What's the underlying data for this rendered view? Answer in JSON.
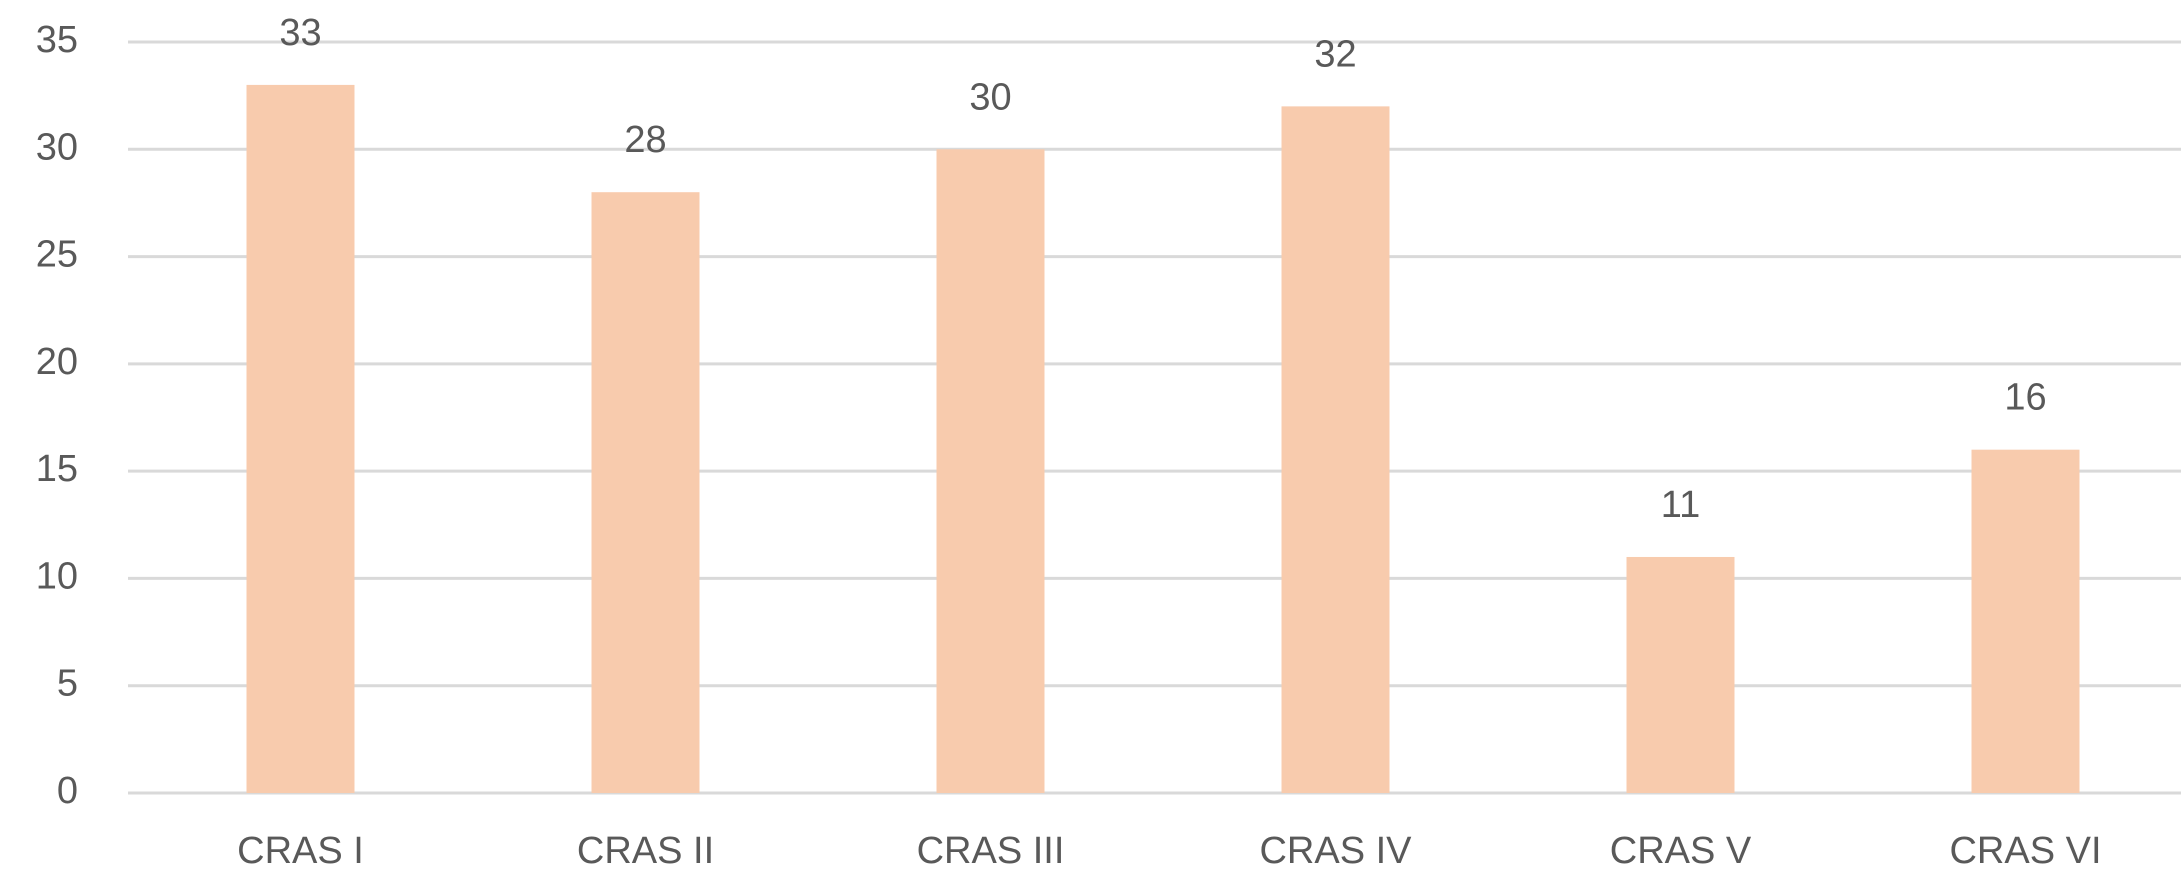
{
  "chart_data": {
    "type": "bar",
    "categories": [
      "CRAS I",
      "CRAS II",
      "CRAS III",
      "CRAS IV",
      "CRAS V",
      "CRAS VI"
    ],
    "values": [
      33,
      28,
      30,
      32,
      11,
      16
    ],
    "color": "#f8cbad",
    "ylim": [
      0,
      35
    ],
    "yticks": [
      0,
      5,
      10,
      15,
      20,
      25,
      30,
      35
    ],
    "grid": true
  }
}
